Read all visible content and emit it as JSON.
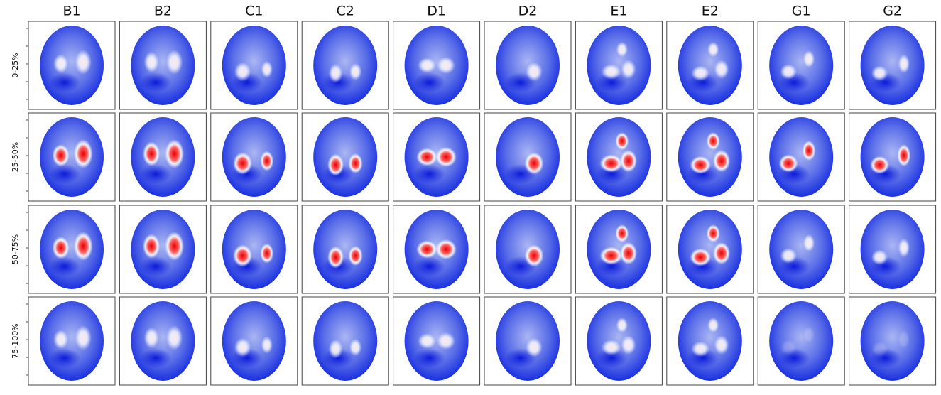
{
  "columns": [
    "B1",
    "B2",
    "C1",
    "C2",
    "D1",
    "D2",
    "E1",
    "E2",
    "G1",
    "G2"
  ],
  "rows": [
    "0-25%",
    "25-50%",
    "50-75%",
    "75-100%"
  ]
}
